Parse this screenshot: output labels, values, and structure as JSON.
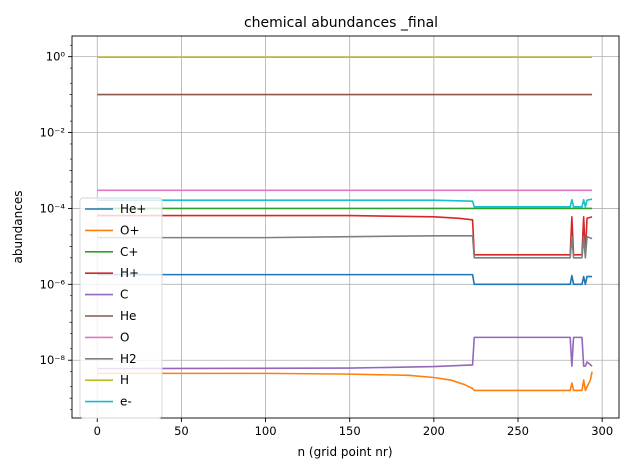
{
  "chart_data": {
    "type": "line",
    "title": "chemical abundances _final",
    "xlabel": "n (grid point nr)",
    "ylabel": "abundances",
    "xlim": [
      -15,
      310
    ],
    "ylim": [
      3e-10,
      3.5
    ],
    "yscale": "log",
    "grid": true,
    "legend_position": "center-left",
    "x_ticks": [
      0,
      50,
      100,
      150,
      200,
      250,
      300
    ],
    "x_tick_labels": [
      "0",
      "50",
      "100",
      "150",
      "200",
      "250",
      "300"
    ],
    "y_ticks": [
      1e-08,
      1e-06,
      0.0001,
      0.01,
      1
    ],
    "y_tick_labels": [
      "10⁻⁸",
      "10⁻⁶",
      "10⁻⁴",
      "10⁻²",
      "10⁰"
    ],
    "series": [
      {
        "name": "He+",
        "color": "#1f77b4",
        "points": [
          [
            0,
            1.8e-06
          ],
          [
            223,
            1.8e-06
          ],
          [
            224,
            1e-06
          ],
          [
            281,
            1e-06
          ],
          [
            282,
            1.7e-06
          ],
          [
            283,
            1e-06
          ],
          [
            288,
            1e-06
          ],
          [
            289,
            1.6e-06
          ],
          [
            290,
            1e-06
          ],
          [
            291,
            1.6e-06
          ],
          [
            294,
            1.6e-06
          ]
        ]
      },
      {
        "name": "O+",
        "color": "#ff7f0e",
        "points": [
          [
            0,
            4.5e-09
          ],
          [
            100,
            4.5e-09
          ],
          [
            150,
            4.3e-09
          ],
          [
            185,
            4e-09
          ],
          [
            200,
            3.5e-09
          ],
          [
            210,
            3e-09
          ],
          [
            218,
            2.3e-09
          ],
          [
            223,
            1.8e-09
          ],
          [
            224,
            1.6e-09
          ],
          [
            281,
            1.6e-09
          ],
          [
            282,
            2.5e-09
          ],
          [
            283,
            1.6e-09
          ],
          [
            288,
            1.6e-09
          ],
          [
            289,
            3e-09
          ],
          [
            290,
            1.6e-09
          ],
          [
            291,
            2e-09
          ],
          [
            293,
            3e-09
          ],
          [
            294,
            5e-09
          ]
        ]
      },
      {
        "name": "C+",
        "color": "#2ca02c",
        "points": [
          [
            0,
            0.0001
          ],
          [
            294,
            0.0001
          ]
        ]
      },
      {
        "name": "H+",
        "color": "#d62728",
        "points": [
          [
            0,
            6.5e-05
          ],
          [
            150,
            6.5e-05
          ],
          [
            200,
            6e-05
          ],
          [
            215,
            5.5e-05
          ],
          [
            223,
            5e-05
          ],
          [
            224,
            6e-06
          ],
          [
            281,
            6e-06
          ],
          [
            282,
            6e-05
          ],
          [
            283,
            6e-06
          ],
          [
            288,
            6e-06
          ],
          [
            289,
            6e-05
          ],
          [
            290,
            6e-06
          ],
          [
            291,
            5.5e-05
          ],
          [
            294,
            6e-05
          ]
        ]
      },
      {
        "name": "C",
        "color": "#9467bd",
        "points": [
          [
            0,
            6e-09
          ],
          [
            150,
            6.2e-09
          ],
          [
            200,
            6.8e-09
          ],
          [
            223,
            7.5e-09
          ],
          [
            224,
            4e-08
          ],
          [
            281,
            4e-08
          ],
          [
            282,
            7e-09
          ],
          [
            283,
            4e-08
          ],
          [
            288,
            4e-08
          ],
          [
            289,
            7e-09
          ],
          [
            290,
            7e-09
          ],
          [
            291,
            9e-09
          ],
          [
            294,
            7e-09
          ]
        ]
      },
      {
        "name": "He",
        "color": "#8c564b",
        "points": [
          [
            0,
            0.1
          ],
          [
            294,
            0.1
          ]
        ]
      },
      {
        "name": "O",
        "color": "#e377c2",
        "points": [
          [
            0,
            0.0003
          ],
          [
            294,
            0.0003
          ]
        ]
      },
      {
        "name": "H2",
        "color": "#7f7f7f",
        "points": [
          [
            0,
            1.7e-05
          ],
          [
            100,
            1.7e-05
          ],
          [
            150,
            1.8e-05
          ],
          [
            200,
            1.9e-05
          ],
          [
            223,
            1.9e-05
          ],
          [
            224,
            5e-06
          ],
          [
            281,
            5e-06
          ],
          [
            282,
            1.8e-05
          ],
          [
            283,
            5e-06
          ],
          [
            288,
            5e-06
          ],
          [
            289,
            1.8e-05
          ],
          [
            290,
            5e-06
          ],
          [
            291,
            1.8e-05
          ],
          [
            294,
            1.6e-05
          ]
        ]
      },
      {
        "name": "H",
        "color": "#bcbd22",
        "points": [
          [
            0,
            0.97
          ],
          [
            294,
            0.97
          ]
        ]
      },
      {
        "name": "e-",
        "color": "#17becf",
        "points": [
          [
            0,
            0.000165
          ],
          [
            150,
            0.000165
          ],
          [
            200,
            0.000165
          ],
          [
            223,
            0.000155
          ],
          [
            224,
            0.00011
          ],
          [
            281,
            0.00011
          ],
          [
            282,
            0.00017
          ],
          [
            283,
            0.00011
          ],
          [
            288,
            0.00011
          ],
          [
            289,
            0.00017
          ],
          [
            290,
            0.00011
          ],
          [
            291,
            0.000165
          ],
          [
            294,
            0.000175
          ]
        ]
      }
    ]
  }
}
